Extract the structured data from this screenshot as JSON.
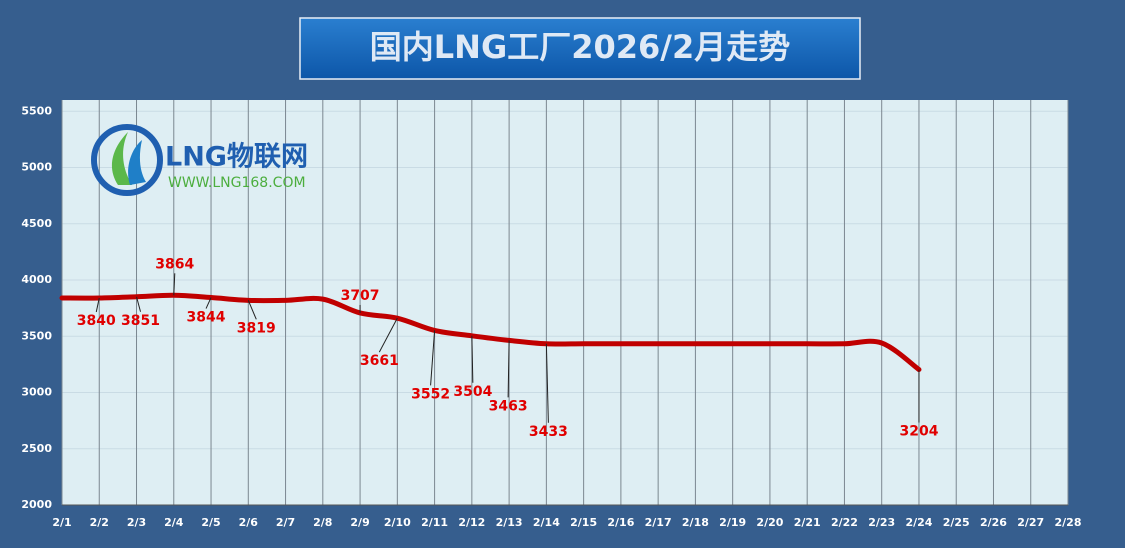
{
  "chart_data": {
    "type": "line",
    "title": "国内LNG工厂2026/2月走势",
    "logo": {
      "name": "LNG物联网",
      "url": "WWW.LNG168.COM"
    },
    "categories": [
      "2/1",
      "2/2",
      "2/3",
      "2/4",
      "2/5",
      "2/6",
      "2/7",
      "2/8",
      "2/9",
      "2/10",
      "2/11",
      "2/12",
      "2/13",
      "2/14",
      "2/15",
      "2/16",
      "2/17",
      "2/18",
      "2/19",
      "2/20",
      "2/21",
      "2/22",
      "2/23",
      "2/24",
      "2/25",
      "2/26",
      "2/27",
      "2/28"
    ],
    "series": [
      {
        "name": "LNG",
        "color": "#c00000",
        "values": [
          3840,
          3840,
          3851,
          3864,
          3844,
          3819,
          3819,
          3830,
          3707,
          3661,
          3552,
          3504,
          3463,
          3433,
          3433,
          3433,
          3433,
          3433,
          3433,
          3433,
          3433,
          3433,
          3440,
          3204,
          null,
          null,
          null,
          null
        ],
        "value_labels": [
          null,
          "3840",
          "3851",
          "3864",
          "3844",
          "3819",
          null,
          null,
          "3707",
          "3661",
          "3552",
          "3504",
          "3463",
          "3433",
          null,
          null,
          null,
          null,
          null,
          null,
          null,
          null,
          null,
          "3204",
          null,
          null,
          null,
          null
        ]
      }
    ],
    "ylim": [
      2000,
      5600
    ],
    "yticks": [
      2000,
      2500,
      3000,
      3500,
      4000,
      4500,
      5000,
      5500
    ],
    "grid": true
  }
}
